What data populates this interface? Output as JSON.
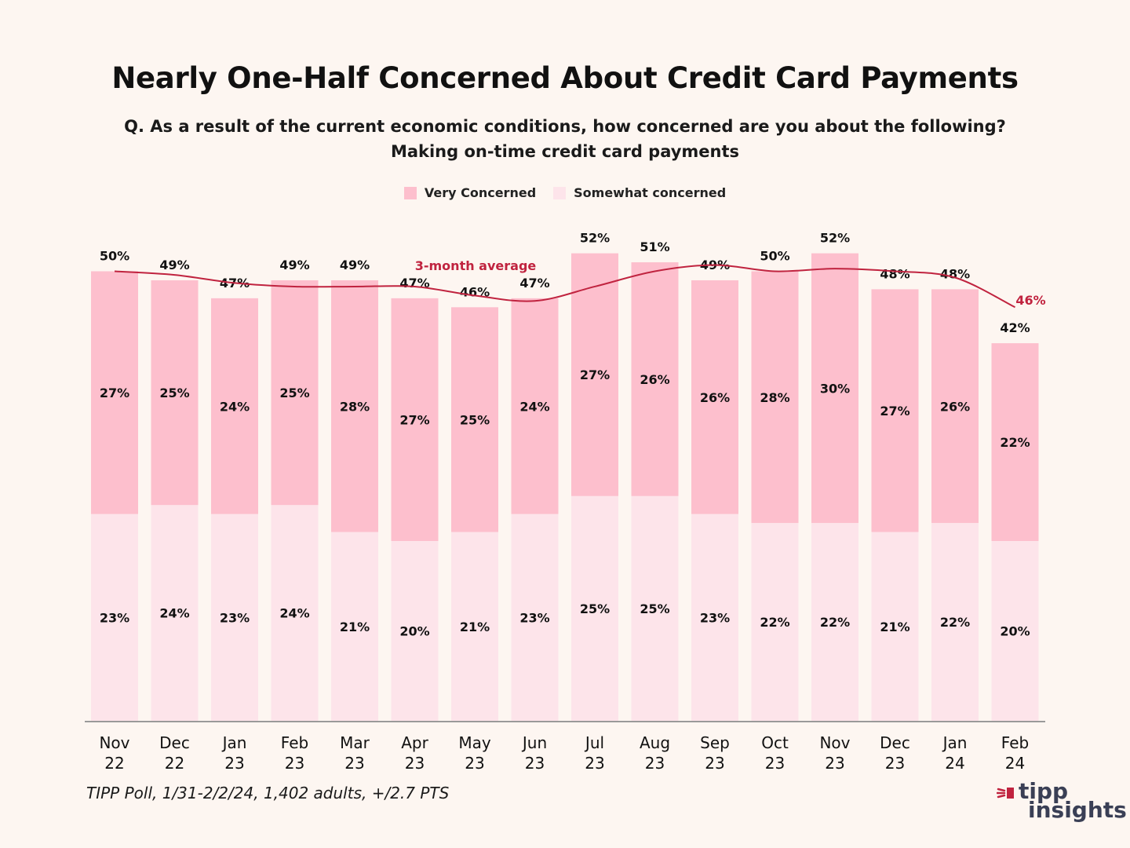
{
  "title": "Nearly One-Half Concerned About Credit Card Payments",
  "subtitle_line1": "Q. As a result of the current economic conditions, how concerned are you about the following?",
  "subtitle_line2": "Making on-time credit card payments",
  "legend": {
    "very": "Very Concerned",
    "somewhat": "Somewhat concerned"
  },
  "source": "TIPP Poll, 1/31-2/2/24, 1,402 adults, +/2.7 PTS",
  "logo": {
    "word1": "tipp",
    "word2": "insights"
  },
  "colors": {
    "very": "#fdbfcd",
    "somewhat": "#fde4ea",
    "line": "#c0233f",
    "axis": "#9a9a9a"
  },
  "chart_data": {
    "type": "bar",
    "stacked": true,
    "categories": [
      [
        "Nov",
        "22"
      ],
      [
        "Dec",
        "22"
      ],
      [
        "Jan",
        "23"
      ],
      [
        "Feb",
        "23"
      ],
      [
        "Mar",
        "23"
      ],
      [
        "Apr",
        "23"
      ],
      [
        "May",
        "23"
      ],
      [
        "Jun",
        "23"
      ],
      [
        "Jul",
        "23"
      ],
      [
        "Aug",
        "23"
      ],
      [
        "Sep",
        "23"
      ],
      [
        "Oct",
        "23"
      ],
      [
        "Nov",
        "23"
      ],
      [
        "Dec",
        "23"
      ],
      [
        "Jan",
        "24"
      ],
      [
        "Feb",
        "24"
      ]
    ],
    "series": [
      {
        "name": "Somewhat concerned",
        "values": [
          23,
          24,
          23,
          24,
          21,
          20,
          21,
          23,
          25,
          25,
          23,
          22,
          22,
          21,
          22,
          20
        ]
      },
      {
        "name": "Very Concerned",
        "values": [
          27,
          25,
          24,
          25,
          28,
          27,
          25,
          24,
          27,
          26,
          26,
          28,
          30,
          27,
          26,
          22
        ]
      }
    ],
    "totals": [
      50,
      49,
      47,
      49,
      49,
      47,
      46,
      47,
      52,
      51,
      49,
      50,
      52,
      48,
      48,
      42
    ],
    "average": {
      "name": "3-month average",
      "values": [
        50,
        49.6,
        48.7,
        48.3,
        48.3,
        48.3,
        47.3,
        46.7,
        48.3,
        50.0,
        50.7,
        50.0,
        50.3,
        50.0,
        49.3,
        46
      ],
      "end_label": "46%"
    },
    "ylim": [
      0,
      60
    ],
    "value_suffix": "%"
  }
}
